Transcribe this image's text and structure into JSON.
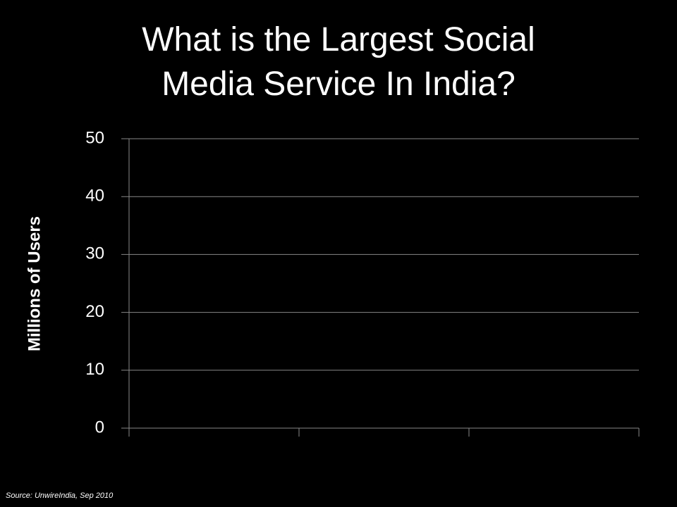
{
  "chart_data": {
    "type": "bar",
    "title": "What is the Largest Social Media Service In India?",
    "y_label": "Millions of Users",
    "source": "Source:  UnwireIndia, Sep 2010",
    "categories": [
      null,
      null,
      null
    ],
    "ylim": [
      0,
      50
    ],
    "yticks": [
      0,
      10,
      20,
      30,
      40,
      50
    ],
    "grid": true
  }
}
